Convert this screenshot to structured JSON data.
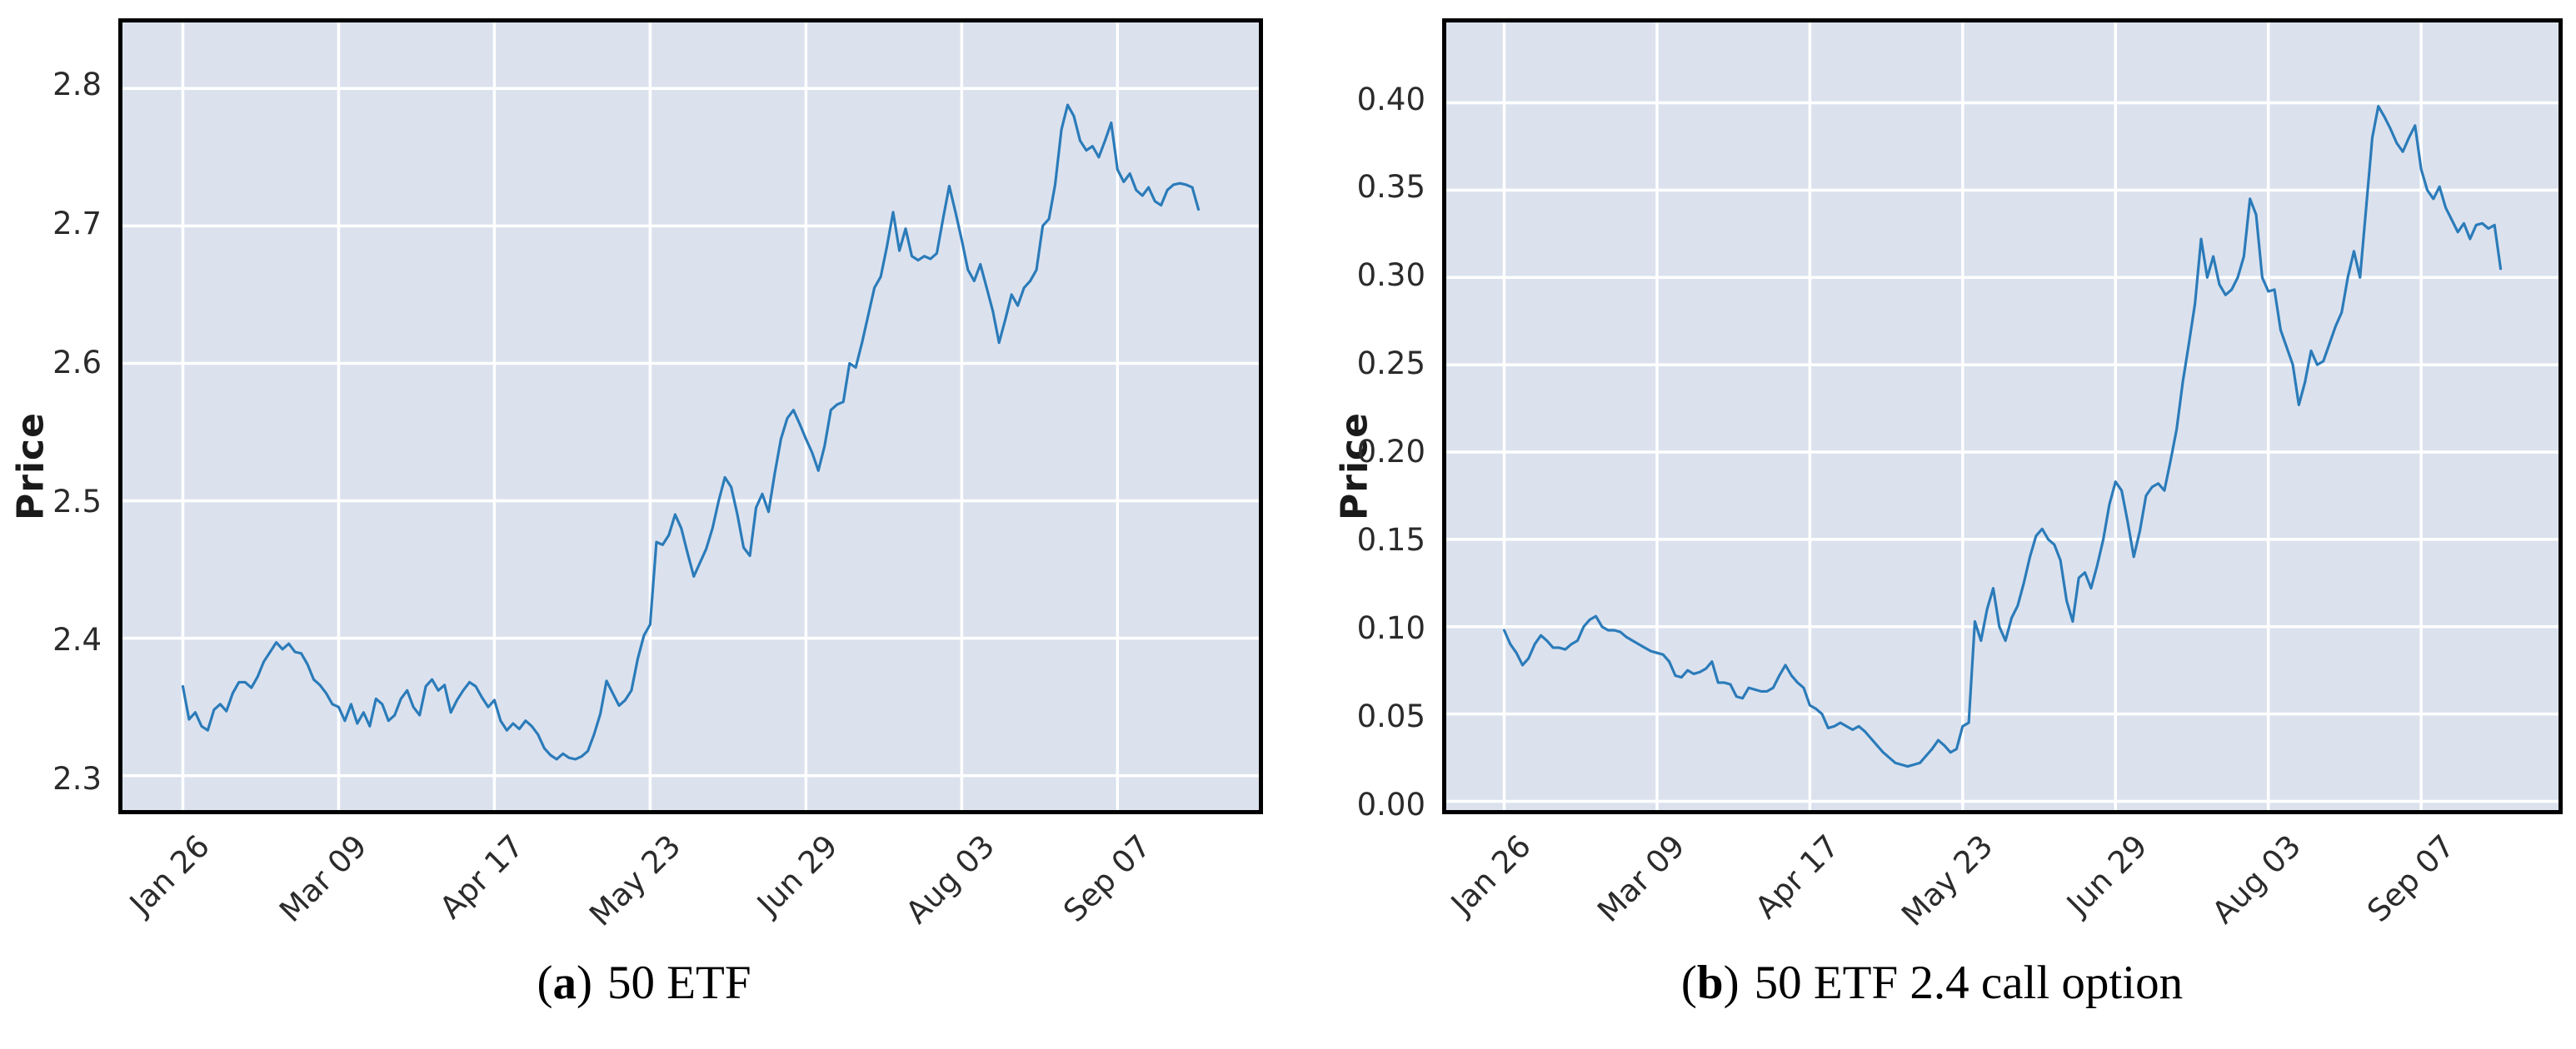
{
  "styles": {
    "page_background": "#ffffff",
    "plot_background": "#dbe2ee",
    "grid_color": "#ffffff",
    "border_color": "#000000",
    "tick_text_color": "#2b2b2b",
    "line_color": "#2b7bb9"
  },
  "chart_data": [
    {
      "type": "line",
      "panel": "a",
      "ylabel": "Price",
      "xlabel": "",
      "legend_position": "none",
      "grid": true,
      "caption": {
        "open": "(",
        "letter": "a",
        "close": ")",
        "text": "50 ETF"
      },
      "x_tick_labels": [
        "Jan 26",
        "Mar 09",
        "Apr 17",
        "May 23",
        "Jun 29",
        "Aug 03",
        "Sep 07"
      ],
      "x_tick_indices": [
        0,
        25,
        50,
        75,
        100,
        125,
        150
      ],
      "y_tick_labels": [
        "2.3",
        "2.4",
        "2.5",
        "2.6",
        "2.7",
        "2.8"
      ],
      "y_ticks": [
        2.3,
        2.4,
        2.5,
        2.6,
        2.7,
        2.8
      ],
      "ylim": [
        2.275,
        2.848
      ],
      "line_color": "#2b7bb9",
      "values": [
        2.365,
        2.341,
        2.346,
        2.336,
        2.333,
        2.348,
        2.352,
        2.347,
        2.36,
        2.368,
        2.368,
        2.364,
        2.372,
        2.383,
        2.39,
        2.397,
        2.392,
        2.396,
        2.39,
        2.389,
        2.381,
        2.37,
        2.366,
        2.36,
        2.352,
        2.35,
        2.34,
        2.352,
        2.338,
        2.346,
        2.336,
        2.356,
        2.352,
        2.34,
        2.344,
        2.356,
        2.362,
        2.35,
        2.344,
        2.365,
        2.37,
        2.362,
        2.366,
        2.346,
        2.355,
        2.362,
        2.368,
        2.365,
        2.357,
        2.35,
        2.355,
        2.34,
        2.333,
        2.338,
        2.334,
        2.34,
        2.336,
        2.33,
        2.32,
        2.315,
        2.312,
        2.316,
        2.313,
        2.312,
        2.314,
        2.318,
        2.33,
        2.345,
        2.369,
        2.36,
        2.351,
        2.355,
        2.362,
        2.385,
        2.402,
        2.41,
        2.47,
        2.468,
        2.475,
        2.49,
        2.48,
        2.462,
        2.445,
        2.455,
        2.465,
        2.48,
        2.5,
        2.517,
        2.51,
        2.49,
        2.466,
        2.46,
        2.495,
        2.505,
        2.492,
        2.52,
        2.545,
        2.56,
        2.566,
        2.556,
        2.545,
        2.535,
        2.522,
        2.54,
        2.566,
        2.57,
        2.572,
        2.6,
        2.597,
        2.615,
        2.635,
        2.655,
        2.663,
        2.685,
        2.71,
        2.682,
        2.698,
        2.678,
        2.675,
        2.678,
        2.676,
        2.68,
        2.705,
        2.729,
        2.71,
        2.69,
        2.668,
        2.66,
        2.672,
        2.655,
        2.638,
        2.615,
        2.632,
        2.65,
        2.642,
        2.655,
        2.66,
        2.668,
        2.7,
        2.705,
        2.73,
        2.77,
        2.788,
        2.78,
        2.762,
        2.755,
        2.758,
        2.75,
        2.762,
        2.775,
        2.741,
        2.732,
        2.738,
        2.726,
        2.722,
        2.728,
        2.718,
        2.715,
        2.726,
        2.73,
        2.731,
        2.73,
        2.728,
        2.712
      ]
    },
    {
      "type": "line",
      "panel": "b",
      "ylabel": "Price",
      "xlabel": "",
      "legend_position": "none",
      "grid": true,
      "caption": {
        "open": "(",
        "letter": "b",
        "close": ")",
        "text": "50 ETF 2.4 call option"
      },
      "x_tick_labels": [
        "Jan 26",
        "Mar 09",
        "Apr 17",
        "May 23",
        "Jun 29",
        "Aug 03",
        "Sep 07"
      ],
      "x_tick_indices": [
        0,
        25,
        50,
        75,
        100,
        125,
        150
      ],
      "y_tick_labels": [
        "0.00",
        "0.05",
        "0.10",
        "0.15",
        "0.20",
        "0.25",
        "0.30",
        "0.35",
        "0.40"
      ],
      "y_ticks": [
        0.0,
        0.05,
        0.1,
        0.15,
        0.2,
        0.25,
        0.3,
        0.35,
        0.4
      ],
      "ylim": [
        -0.005,
        0.446
      ],
      "line_color": "#2b7bb9",
      "values": [
        0.098,
        0.09,
        0.085,
        0.078,
        0.082,
        0.09,
        0.095,
        0.092,
        0.088,
        0.088,
        0.087,
        0.09,
        0.092,
        0.1,
        0.104,
        0.106,
        0.1,
        0.098,
        0.098,
        0.097,
        0.094,
        0.092,
        0.09,
        0.088,
        0.086,
        0.085,
        0.084,
        0.08,
        0.072,
        0.071,
        0.075,
        0.073,
        0.074,
        0.076,
        0.08,
        0.068,
        0.068,
        0.067,
        0.06,
        0.059,
        0.065,
        0.064,
        0.063,
        0.063,
        0.065,
        0.072,
        0.078,
        0.072,
        0.068,
        0.065,
        0.055,
        0.053,
        0.05,
        0.042,
        0.043,
        0.045,
        0.043,
        0.041,
        0.043,
        0.04,
        0.036,
        0.032,
        0.028,
        0.025,
        0.022,
        0.021,
        0.02,
        0.021,
        0.022,
        0.026,
        0.03,
        0.035,
        0.032,
        0.028,
        0.03,
        0.043,
        0.045,
        0.103,
        0.092,
        0.11,
        0.122,
        0.1,
        0.092,
        0.105,
        0.112,
        0.125,
        0.14,
        0.152,
        0.156,
        0.15,
        0.147,
        0.138,
        0.115,
        0.103,
        0.128,
        0.131,
        0.122,
        0.135,
        0.15,
        0.17,
        0.183,
        0.178,
        0.16,
        0.14,
        0.155,
        0.175,
        0.18,
        0.182,
        0.178,
        0.195,
        0.213,
        0.24,
        0.262,
        0.285,
        0.322,
        0.3,
        0.312,
        0.296,
        0.29,
        0.293,
        0.3,
        0.312,
        0.345,
        0.336,
        0.3,
        0.292,
        0.293,
        0.27,
        0.26,
        0.25,
        0.227,
        0.24,
        0.258,
        0.25,
        0.252,
        0.262,
        0.272,
        0.28,
        0.3,
        0.315,
        0.3,
        0.34,
        0.38,
        0.398,
        0.392,
        0.385,
        0.377,
        0.372,
        0.38,
        0.387,
        0.362,
        0.35,
        0.345,
        0.352,
        0.34,
        0.333,
        0.326,
        0.331,
        0.322,
        0.33,
        0.331,
        0.328,
        0.33,
        0.305
      ]
    }
  ]
}
